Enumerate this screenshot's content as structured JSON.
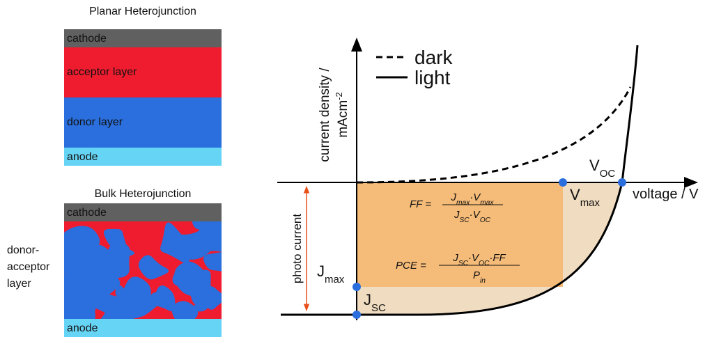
{
  "planar": {
    "title": "Planar Heterojunction",
    "layers": [
      "cathode",
      "acceptor layer",
      "donor layer",
      "anode"
    ]
  },
  "bulk": {
    "title": "Bulk Heterojunction",
    "layers": [
      "cathode",
      "anode"
    ],
    "mixed_label": [
      "donor-",
      "acceptor",
      "layer"
    ]
  },
  "jv_plot": {
    "legend": [
      "dark",
      "light"
    ],
    "y_axis_label": {
      "line1": "current density /",
      "unit": "mAcm",
      "exp": "-2"
    },
    "x_axis_label": "voltage / V",
    "photo_current": "photo current",
    "points": {
      "voc": {
        "base": "V",
        "sub": "OC"
      },
      "vmax": {
        "base": "V",
        "sub": "max"
      },
      "jmax": {
        "base": "J",
        "sub": "max"
      },
      "jsc": {
        "base": "J",
        "sub": "SC"
      }
    },
    "ff": {
      "lhs": "FF =",
      "num": [
        {
          "base": "J",
          "sub": "max"
        },
        "·",
        {
          "base": "V",
          "sub": "max"
        }
      ],
      "den": [
        {
          "base": "J",
          "sub": "SC"
        },
        "·",
        {
          "base": "V",
          "sub": "OC"
        }
      ]
    },
    "pce": {
      "lhs": "PCE =",
      "num": [
        {
          "base": "J",
          "sub": "SC"
        },
        "·",
        {
          "base": "V",
          "sub": "OC"
        },
        "·",
        "FF"
      ],
      "den": {
        "base": "P",
        "sub": "in"
      }
    }
  }
}
